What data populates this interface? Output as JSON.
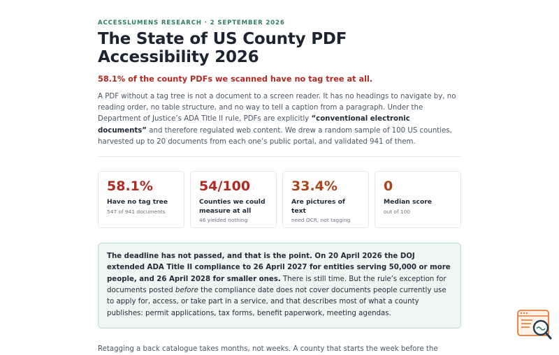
{
  "colors": {
    "accent": "#2f7a66",
    "alert": "#b12a22",
    "stat_red": "#b12a22",
    "stat_orange": "#a8431a",
    "callout_bg": "#eef7f4",
    "badge": "#e07a3a"
  },
  "article": {
    "eyebrow": "ACCESSLUMENS RESEARCH · 2 SEPTEMBER 2026",
    "title": "The State of US County PDF Accessibility 2026",
    "lede": "58.1% of the county PDFs we scanned have no tag tree at all.",
    "intro_1": "A PDF without a tag tree is not a document to a screen reader. It has no headings to navigate by, no reading order, no table structure, and no way to tell a caption from a paragraph. Under the Department of Justice’s ADA Title II rule, PDFs are explicitly ",
    "intro_bold": "“conventional electronic documents”",
    "intro_2": " and therefore regulated web content. We drew a random sample of 100 US counties, harvested up to 20 documents from each one’s public portal, and validated 941 of them."
  },
  "stats": [
    {
      "value": "58.1%",
      "label": "Have no tag tree",
      "sub": "547 of 941 documents"
    },
    {
      "value": "54/100",
      "label": "Counties we could measure at all",
      "sub": "46 yielded nothing"
    },
    {
      "value": "33.4%",
      "label": "Are pictures of text",
      "sub": "need OCR, not tagging"
    },
    {
      "value": "0",
      "label": "Median score",
      "sub": "out of 100"
    }
  ],
  "callout": {
    "bold": "The deadline has not passed, and that is the point. On 20 April 2026 the DOJ extended ADA Title II compliance to 26 April 2027 for entities serving 50,000 or more people, and 26 April 2028 for smaller ones.",
    "text_1": " There is still time. But the rule’s exception for documents posted ",
    "text_em": "before",
    "text_2": " the compliance date does not cover documents people currently use to apply for, access, or take part in a service, and that describes most of what a county publishes: permit applications, tax forms, benefit paperwork, meeting agendas."
  },
  "after": "Retagging a back catalogue takes months, not weeks. A county that starts the week before the",
  "badge_icon": "document-search-icon"
}
